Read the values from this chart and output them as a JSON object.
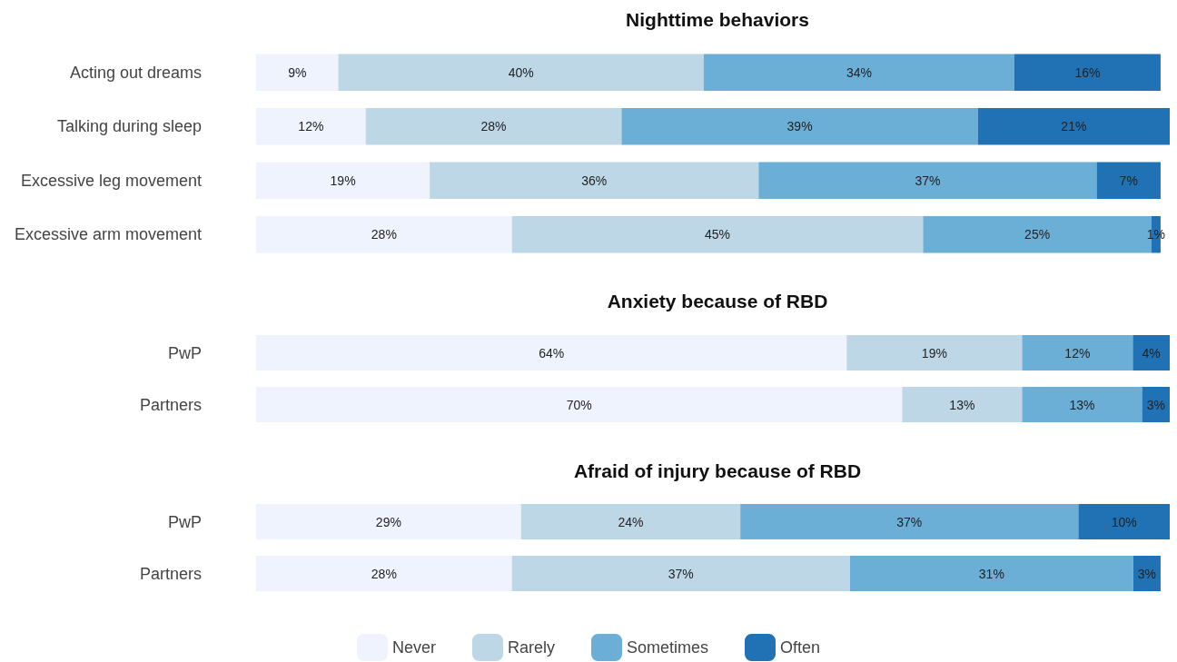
{
  "chart_data": [
    {
      "type": "bar",
      "orientation": "horizontal",
      "stacked": true,
      "title": "Nighttime behaviors",
      "categories": [
        "Acting out dreams",
        "Talking during sleep",
        "Excessive leg movement",
        "Excessive arm movement"
      ],
      "tick_labels": "y",
      "legend": false,
      "grid": false,
      "series": [
        {
          "color": "#eef3fd",
          "values": [
            9,
            12,
            19,
            28
          ],
          "value_labels": [
            "9%",
            "12%",
            "19%",
            "28%"
          ]
        },
        {
          "color": "#bdd7e7",
          "values": [
            40,
            28,
            36,
            45
          ],
          "value_labels": [
            "40%",
            "28%",
            "36%",
            "45%"
          ]
        },
        {
          "color": "#6baed6",
          "values": [
            34,
            39,
            37,
            25
          ],
          "value_labels": [
            "34%",
            "39%",
            "37%",
            "25%"
          ]
        },
        {
          "color": "#2171b5",
          "values": [
            16,
            21,
            7,
            1
          ],
          "value_labels": [
            "16%",
            "21%",
            "7%",
            "1%"
          ]
        }
      ]
    },
    {
      "type": "bar",
      "orientation": "horizontal",
      "stacked": true,
      "title": "Anxiety because of RBD",
      "categories": [
        "PwP",
        "Partners"
      ],
      "tick_labels": "y",
      "legend": false,
      "grid": false,
      "series": [
        {
          "color": "#eef3fd",
          "values": [
            64,
            70
          ],
          "value_labels": [
            "64%",
            "70%"
          ]
        },
        {
          "color": "#bdd7e7",
          "values": [
            19,
            13
          ],
          "value_labels": [
            "19%",
            "13%"
          ]
        },
        {
          "color": "#6baed6",
          "values": [
            12,
            13
          ],
          "value_labels": [
            "12%",
            "13%"
          ]
        },
        {
          "color": "#2171b5",
          "values": [
            4,
            3
          ],
          "value_labels": [
            "4%",
            "3%"
          ]
        }
      ]
    },
    {
      "type": "bar",
      "orientation": "horizontal",
      "stacked": true,
      "title": "Afraid of injury because of RBD",
      "categories": [
        "PwP",
        "Partners"
      ],
      "tick_labels": "y",
      "legend": "bottom",
      "grid": false,
      "series": [
        {
          "name": "Never",
          "color": "#eef3fd",
          "values": [
            29,
            28
          ],
          "value_labels": [
            "29%",
            "28%"
          ]
        },
        {
          "name": "Rarely",
          "color": "#bdd7e7",
          "values": [
            24,
            37
          ],
          "value_labels": [
            "24%",
            "37%"
          ]
        },
        {
          "name": "Sometimes",
          "color": "#6baed6",
          "values": [
            37,
            31
          ],
          "value_labels": [
            "37%",
            "31%"
          ]
        },
        {
          "name": "Often",
          "color": "#2171b5",
          "values": [
            10,
            3
          ],
          "value_labels": [
            "10%",
            "3%"
          ]
        }
      ]
    }
  ]
}
